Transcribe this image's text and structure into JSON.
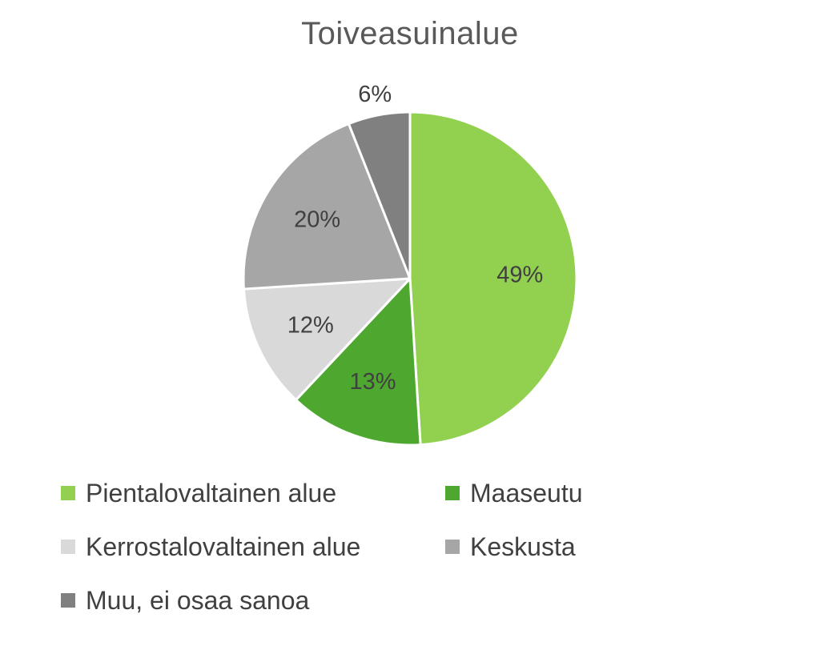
{
  "chart_data": {
    "type": "pie",
    "title": "Toiveasuinalue",
    "series": [
      {
        "name": "Pientalovaltainen alue",
        "value": 49,
        "label": "49%",
        "color": "#92d050"
      },
      {
        "name": "Maaseutu",
        "value": 13,
        "label": "13%",
        "color": "#4ea72e"
      },
      {
        "name": "Kerrostalovaltainen alue",
        "value": 12,
        "label": "12%",
        "color": "#d9d9d9"
      },
      {
        "name": "Keskusta",
        "value": 20,
        "label": "20%",
        "color": "#a6a6a6"
      },
      {
        "name": "Muu, ei osaa sanoa",
        "value": 6,
        "label": "6%",
        "color": "#808080"
      }
    ],
    "legend_position": "bottom"
  }
}
